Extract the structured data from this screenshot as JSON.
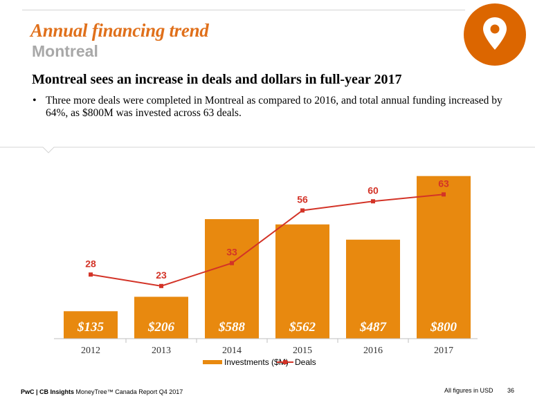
{
  "header": {
    "title": "Annual financing trend",
    "subtitle": "Montreal",
    "headline": "Montreal sees an increase in deals and dollars in full-year 2017",
    "bullet_marker": "•",
    "bullet": "Three more deals were completed in Montreal as compared to 2016, and total annual funding increased by 64%, as $800M was invested across 63 deals."
  },
  "colors": {
    "accent": "#e0701b",
    "bar": "#e8890f",
    "line": "#d33327",
    "badge": "#dc6600",
    "subtitle": "#a8a8a8"
  },
  "icons": {
    "badge": "location-pin-icon"
  },
  "chart_data": {
    "type": "bar",
    "categories": [
      "2012",
      "2013",
      "2014",
      "2015",
      "2016",
      "2017"
    ],
    "series": [
      {
        "name": "Investments ($M)",
        "type": "bar",
        "values": [
          135,
          206,
          588,
          562,
          487,
          800
        ],
        "labels": [
          "$135",
          "$206",
          "$588",
          "$562",
          "$487",
          "$800"
        ]
      },
      {
        "name": "Deals",
        "type": "line",
        "values": [
          28,
          23,
          33,
          56,
          60,
          63
        ],
        "labels": [
          "28",
          "23",
          "33",
          "56",
          "60",
          "63"
        ]
      }
    ],
    "ylim_bar": [
      0,
      850
    ],
    "ylim_line": [
      0,
      80
    ],
    "legend": [
      "Investments ($M)",
      "Deals"
    ],
    "legend_position": "bottom"
  },
  "footer": {
    "brand": "PwC | CB Insights",
    "source": " MoneyTree™ Canada Report Q4 2017",
    "note": "All figures in USD",
    "page": "36"
  }
}
